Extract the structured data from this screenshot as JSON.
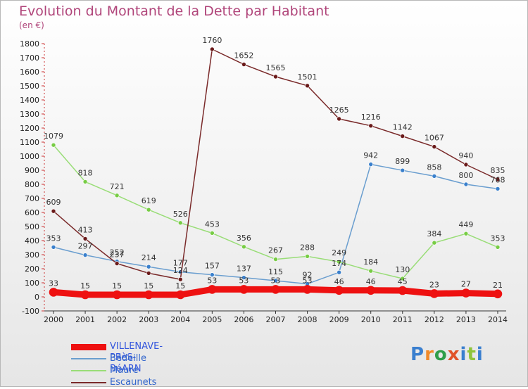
{
  "title": "Evolution du Montant de la Dette par Habitant",
  "unit": "(en €)",
  "logo": "Proxiti",
  "colors": {
    "title": "#b0457a",
    "axis": "#cc3333"
  },
  "chart_data": {
    "type": "line",
    "title": "Evolution du Montant de la Dette par Habitant",
    "ylabel": "(en €)",
    "x": [
      "2000",
      "2001",
      "2002",
      "2003",
      "2004",
      "2005",
      "2006",
      "2007",
      "2008",
      "2009",
      "2010",
      "2011",
      "2012",
      "2013",
      "2014"
    ],
    "ylim": [
      -100,
      1800
    ],
    "yticks": [
      -100,
      0,
      100,
      200,
      300,
      400,
      500,
      600,
      700,
      800,
      900,
      1000,
      1100,
      1200,
      1300,
      1400,
      1500,
      1600,
      1700,
      1800
    ],
    "grid": false,
    "legend_position": "bottom-left",
    "series": [
      {
        "name": "VILLENAVE-PRèS-BéARN",
        "color": "#ee1111",
        "marker": "#ee1111",
        "width": 9,
        "values": [
          33,
          15,
          15,
          15,
          15,
          53,
          53,
          53,
          53,
          46,
          46,
          45,
          23,
          27,
          21
        ],
        "labels": [
          "33",
          "15",
          "15",
          "15",
          "15",
          "53",
          "53",
          "53",
          "53",
          "46",
          "46",
          "45",
          "23",
          "27",
          "21"
        ]
      },
      {
        "name": "Bédeille",
        "color": "#6a9ecf",
        "marker": "#3a80cc",
        "width": 1.5,
        "values": [
          353,
          297,
          252,
          214,
          177,
          157,
          137,
          115,
          92,
          174,
          942,
          899,
          858,
          800,
          768
        ],
        "labels": [
          "353",
          "297",
          "252",
          "214",
          "177",
          "157",
          "137",
          "115",
          "92",
          "174",
          "942",
          "899",
          "858",
          "800",
          "768"
        ]
      },
      {
        "name": "Maure",
        "color": "#99dd77",
        "marker": "#77cc44",
        "width": 1.5,
        "values": [
          1079,
          818,
          721,
          619,
          526,
          453,
          356,
          267,
          288,
          249,
          184,
          130,
          384,
          449,
          353
        ],
        "labels": [
          "1079",
          "818",
          "721",
          "619",
          "526",
          "453",
          "356",
          "267",
          "288",
          "249",
          "184",
          "130",
          "384",
          "449",
          "353"
        ]
      },
      {
        "name": "Escaunets",
        "color": "#7a2a2a",
        "marker": "#6a1a1a",
        "width": 1.5,
        "values": [
          609,
          413,
          237,
          168,
          124,
          1760,
          1652,
          1565,
          1501,
          1265,
          1216,
          1142,
          1067,
          940,
          835
        ],
        "labels": [
          "609",
          "413",
          "237",
          "",
          "124",
          "1760",
          "1652",
          "1565",
          "1501",
          "1265",
          "1216",
          "1142",
          "1067",
          "940",
          "835"
        ]
      }
    ]
  }
}
